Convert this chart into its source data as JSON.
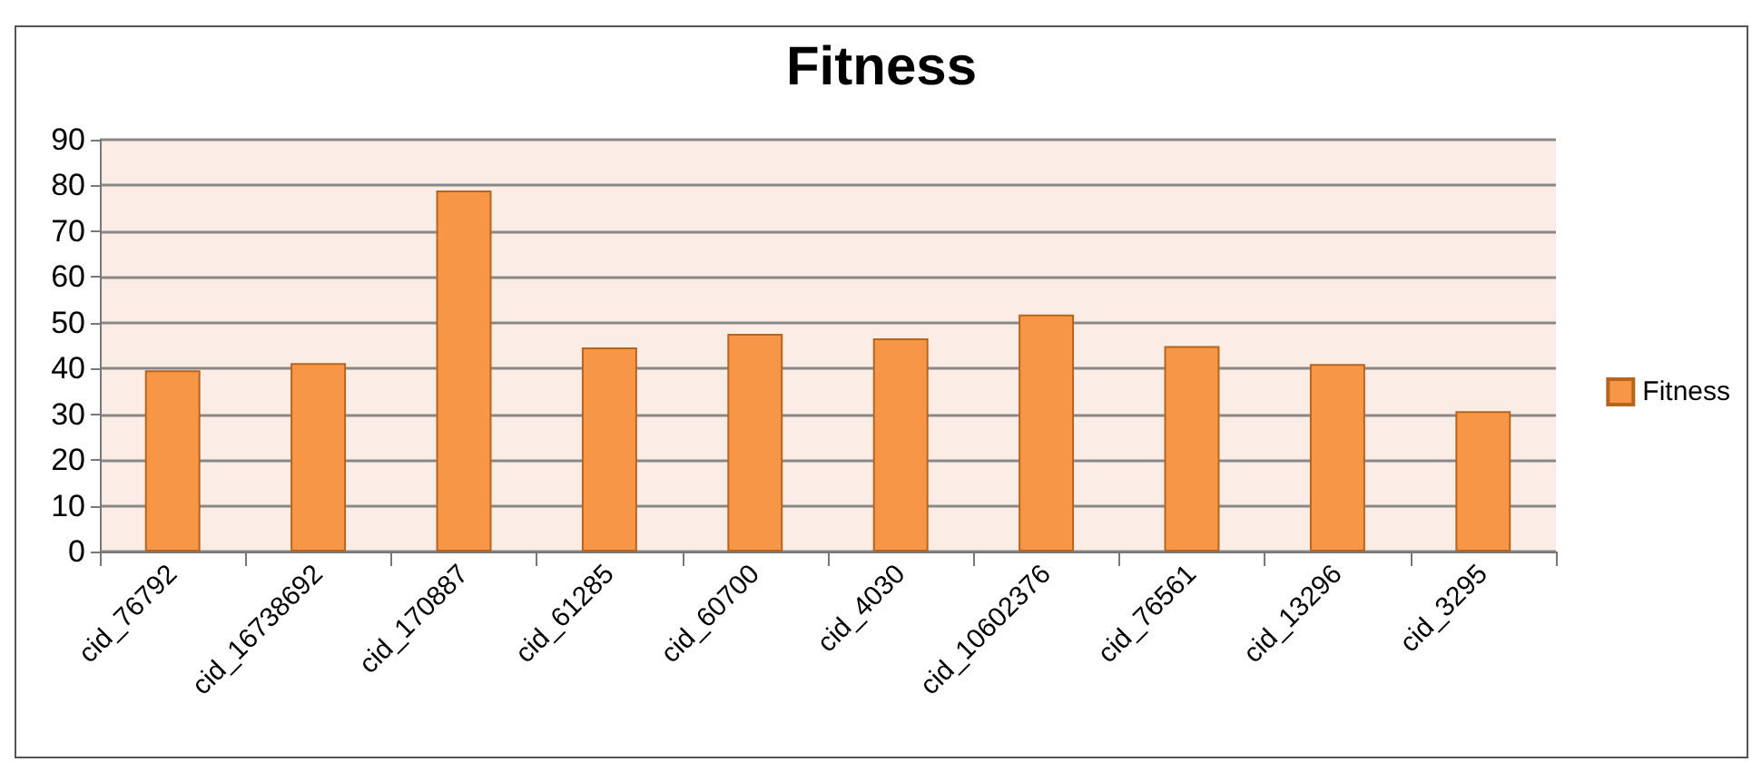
{
  "chart_data": {
    "type": "bar",
    "title": "Fitness",
    "categories": [
      "cid_76792",
      "cid_16738692",
      "cid_170887",
      "cid_61285",
      "cid_60700",
      "cid_4030",
      "cid_10602376",
      "cid_76561",
      "cid_13296",
      "cid_3295"
    ],
    "series": [
      {
        "name": "Fitness",
        "color": "#f79646",
        "values": [
          39.6,
          41.2,
          78.9,
          44.6,
          47.6,
          46.6,
          51.8,
          44.9,
          41.0,
          30.7
        ]
      }
    ],
    "ylim": [
      0,
      90
    ],
    "yticks": [
      0,
      10,
      20,
      30,
      40,
      50,
      60,
      70,
      80,
      90
    ],
    "grid": "y",
    "legend": "right"
  }
}
